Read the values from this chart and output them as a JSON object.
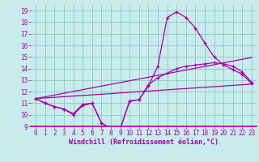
{
  "xlabel": "Windchill (Refroidissement éolien,°C)",
  "xlim": [
    -0.5,
    23.5
  ],
  "ylim": [
    9,
    19.5
  ],
  "yticks": [
    9,
    10,
    11,
    12,
    13,
    14,
    15,
    16,
    17,
    18,
    19
  ],
  "xticks": [
    0,
    1,
    2,
    3,
    4,
    5,
    6,
    7,
    8,
    9,
    10,
    11,
    12,
    13,
    14,
    15,
    16,
    17,
    18,
    19,
    20,
    21,
    22,
    23
  ],
  "bg_color": "#c8ecec",
  "line_color": "#aa00aa",
  "grid_color": "#99cccc",
  "series1": {
    "x": [
      0,
      1,
      2,
      3,
      4,
      5,
      6,
      7,
      8,
      9,
      10,
      11,
      12,
      13,
      14,
      15,
      16,
      17,
      18,
      19,
      20,
      21,
      22,
      23
    ],
    "y": [
      11.4,
      11.0,
      10.7,
      10.5,
      10.1,
      10.9,
      11.0,
      9.3,
      8.8,
      8.8,
      11.2,
      11.3,
      12.5,
      14.2,
      18.4,
      18.9,
      18.4,
      17.5,
      16.2,
      15.0,
      14.3,
      13.9,
      13.5,
      12.7
    ]
  },
  "series2": {
    "x": [
      0,
      1,
      2,
      3,
      4,
      5,
      6,
      7,
      8,
      9,
      10,
      11,
      12,
      13,
      14,
      15,
      16,
      17,
      18,
      19,
      20,
      21,
      22,
      23
    ],
    "y": [
      11.4,
      11.0,
      10.7,
      10.5,
      10.0,
      10.8,
      11.0,
      9.3,
      8.8,
      8.8,
      11.2,
      11.3,
      12.6,
      13.2,
      13.6,
      14.0,
      14.2,
      14.3,
      14.4,
      14.5,
      14.4,
      14.2,
      13.7,
      12.8
    ]
  },
  "series3": {
    "x": [
      0,
      23
    ],
    "y": [
      11.4,
      12.65
    ]
  },
  "series4": {
    "x": [
      0,
      23
    ],
    "y": [
      11.4,
      14.95
    ]
  }
}
